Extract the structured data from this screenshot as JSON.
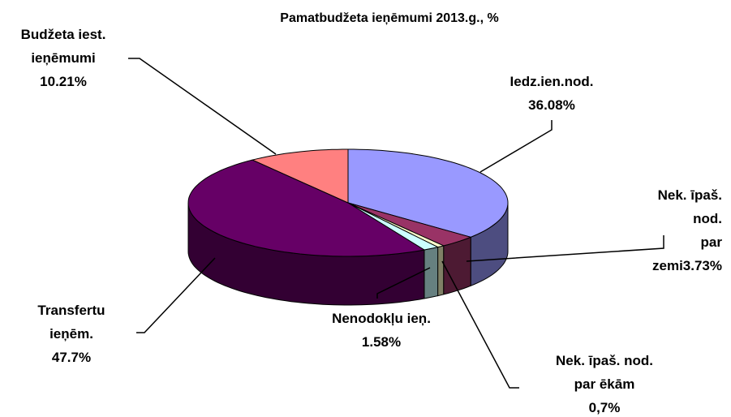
{
  "chart_data": {
    "type": "pie3d",
    "title": "Pamatbudžeta ieņēmumi 2013.g., %",
    "categories": [
      "Iedz.ien.nod.",
      "Nek. īpaš. nod.\npar zemi",
      "Nek. īpaš. nod.\npar ēkām",
      "Nenodokļu ieņ.",
      "Transfertu\nieņēm.",
      "Budžeta iest.\nieņēmumi"
    ],
    "values": [
      36.08,
      3.73,
      0.7,
      1.58,
      47.7,
      10.21
    ],
    "value_labels": [
      "36.08%",
      "3.73%",
      "0,7%",
      "1.58%",
      "47.7%",
      "10.21%"
    ],
    "colors": [
      "#9999ff",
      "#993366",
      "#ffffcc",
      "#ccffff",
      "#660066",
      "#ff8080"
    ]
  }
}
